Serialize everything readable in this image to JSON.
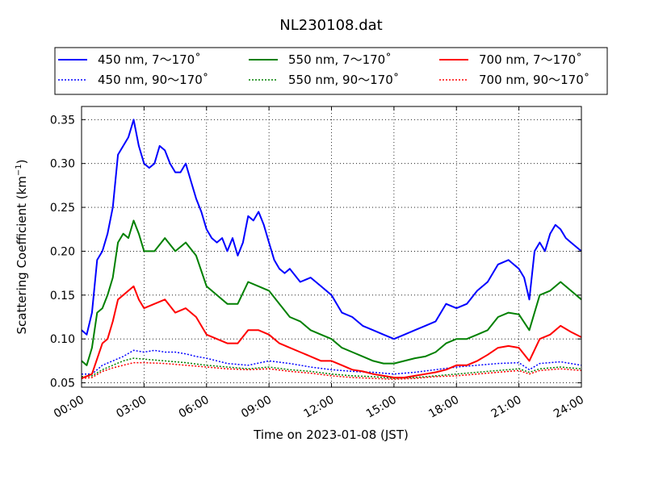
{
  "chart_data": {
    "type": "line",
    "title": "NL230108.dat",
    "xlabel": "Time on 2023-01-08 (JST)",
    "ylabel": "Scattering Coefficient (km",
    "ylabel_sup": "−1",
    "ylabel_end": ")",
    "xlim": [
      0,
      24
    ],
    "ylim": [
      0.045,
      0.365
    ],
    "xticks": [
      0,
      3,
      6,
      9,
      12,
      15,
      18,
      21,
      24
    ],
    "xtick_labels": [
      "00:00",
      "03:00",
      "06:00",
      "09:00",
      "12:00",
      "15:00",
      "18:00",
      "21:00",
      "24:00"
    ],
    "yticks": [
      0.05,
      0.1,
      0.15,
      0.2,
      0.25,
      0.3,
      0.35
    ],
    "ytick_labels": [
      "0.05",
      "0.10",
      "0.15",
      "0.20",
      "0.25",
      "0.30",
      "0.35"
    ],
    "grid": true,
    "legend_placement": "above-plot",
    "series": [
      {
        "name": "450 nm, 7～170˚",
        "color": "#0000ff",
        "style": "solid",
        "x": [
          0,
          0.25,
          0.5,
          0.75,
          1.0,
          1.25,
          1.5,
          1.75,
          2.0,
          2.25,
          2.5,
          2.75,
          3.0,
          3.25,
          3.5,
          3.75,
          4.0,
          4.25,
          4.5,
          4.75,
          5.0,
          5.25,
          5.5,
          5.75,
          6.0,
          6.25,
          6.5,
          6.75,
          7.0,
          7.25,
          7.5,
          7.75,
          8.0,
          8.25,
          8.5,
          8.75,
          9.0,
          9.25,
          9.5,
          9.75,
          10.0,
          10.5,
          11.0,
          11.5,
          12.0,
          12.5,
          13.0,
          13.5,
          14.0,
          14.5,
          15.0,
          15.5,
          16.0,
          16.5,
          17.0,
          17.5,
          18.0,
          18.5,
          19.0,
          19.5,
          20.0,
          20.5,
          21.0,
          21.25,
          21.5,
          21.75,
          22.0,
          22.25,
          22.5,
          22.75,
          23.0,
          23.25,
          23.5,
          24.0
        ],
        "y": [
          0.11,
          0.105,
          0.13,
          0.19,
          0.2,
          0.22,
          0.25,
          0.31,
          0.32,
          0.33,
          0.35,
          0.32,
          0.3,
          0.295,
          0.3,
          0.32,
          0.315,
          0.3,
          0.29,
          0.29,
          0.3,
          0.28,
          0.26,
          0.245,
          0.225,
          0.215,
          0.21,
          0.215,
          0.2,
          0.215,
          0.195,
          0.21,
          0.24,
          0.235,
          0.245,
          0.23,
          0.21,
          0.19,
          0.18,
          0.175,
          0.18,
          0.165,
          0.17,
          0.16,
          0.15,
          0.13,
          0.125,
          0.115,
          0.11,
          0.105,
          0.1,
          0.105,
          0.11,
          0.115,
          0.12,
          0.14,
          0.135,
          0.14,
          0.155,
          0.165,
          0.185,
          0.19,
          0.18,
          0.17,
          0.145,
          0.2,
          0.21,
          0.2,
          0.22,
          0.23,
          0.225,
          0.215,
          0.21,
          0.2
        ]
      },
      {
        "name": "450 nm, 90～170˚",
        "color": "#0000ff",
        "style": "dotted",
        "x": [
          0,
          0.5,
          1.0,
          1.5,
          2.0,
          2.5,
          3.0,
          3.5,
          4.0,
          4.5,
          5.0,
          5.5,
          6.0,
          7.0,
          8.0,
          9.0,
          10.0,
          11.0,
          12.0,
          13.0,
          14.0,
          15.0,
          16.0,
          17.0,
          18.0,
          19.0,
          20.0,
          21.0,
          21.5,
          22.0,
          23.0,
          24.0
        ],
        "y": [
          0.06,
          0.06,
          0.07,
          0.075,
          0.08,
          0.087,
          0.085,
          0.087,
          0.085,
          0.085,
          0.083,
          0.08,
          0.078,
          0.072,
          0.07,
          0.075,
          0.072,
          0.068,
          0.065,
          0.063,
          0.062,
          0.06,
          0.062,
          0.065,
          0.068,
          0.07,
          0.072,
          0.073,
          0.065,
          0.072,
          0.074,
          0.07
        ]
      },
      {
        "name": "550 nm, 7～170˚",
        "color": "#008000",
        "style": "solid",
        "x": [
          0,
          0.25,
          0.5,
          0.75,
          1.0,
          1.25,
          1.5,
          1.75,
          2.0,
          2.25,
          2.5,
          2.75,
          3.0,
          3.5,
          4.0,
          4.5,
          5.0,
          5.5,
          6.0,
          6.5,
          7.0,
          7.5,
          8.0,
          8.5,
          9.0,
          9.5,
          10.0,
          10.5,
          11.0,
          11.5,
          12.0,
          12.5,
          13.0,
          13.5,
          14.0,
          14.5,
          15.0,
          15.5,
          16.0,
          16.5,
          17.0,
          17.5,
          18.0,
          18.5,
          19.0,
          19.5,
          20.0,
          20.5,
          21.0,
          21.5,
          22.0,
          22.5,
          23.0,
          23.5,
          24.0
        ],
        "y": [
          0.075,
          0.07,
          0.09,
          0.13,
          0.135,
          0.15,
          0.17,
          0.21,
          0.22,
          0.215,
          0.235,
          0.22,
          0.2,
          0.2,
          0.215,
          0.2,
          0.21,
          0.195,
          0.16,
          0.15,
          0.14,
          0.14,
          0.165,
          0.16,
          0.155,
          0.14,
          0.125,
          0.12,
          0.11,
          0.105,
          0.1,
          0.09,
          0.085,
          0.08,
          0.075,
          0.072,
          0.072,
          0.075,
          0.078,
          0.08,
          0.085,
          0.095,
          0.1,
          0.1,
          0.105,
          0.11,
          0.125,
          0.13,
          0.128,
          0.11,
          0.15,
          0.155,
          0.165,
          0.155,
          0.145
        ]
      },
      {
        "name": "550 nm, 90～170˚",
        "color": "#008000",
        "style": "dotted",
        "x": [
          0,
          0.5,
          1.0,
          1.5,
          2.0,
          2.5,
          3.0,
          4.0,
          5.0,
          6.0,
          7.0,
          8.0,
          9.0,
          10.0,
          11.0,
          12.0,
          13.0,
          14.0,
          15.0,
          16.0,
          17.0,
          18.0,
          19.0,
          20.0,
          21.0,
          21.5,
          22.0,
          23.0,
          24.0
        ],
        "y": [
          0.057,
          0.058,
          0.065,
          0.07,
          0.075,
          0.078,
          0.077,
          0.075,
          0.073,
          0.07,
          0.068,
          0.066,
          0.068,
          0.065,
          0.063,
          0.06,
          0.058,
          0.057,
          0.055,
          0.056,
          0.058,
          0.06,
          0.062,
          0.064,
          0.066,
          0.062,
          0.066,
          0.068,
          0.066
        ]
      },
      {
        "name": "700 nm, 7～170˚",
        "color": "#ff0000",
        "style": "solid",
        "x": [
          0,
          0.5,
          1.0,
          1.25,
          1.5,
          1.75,
          2.0,
          2.5,
          2.75,
          3.0,
          3.5,
          4.0,
          4.5,
          5.0,
          5.5,
          6.0,
          6.5,
          7.0,
          7.5,
          8.0,
          8.5,
          9.0,
          9.5,
          10.0,
          10.5,
          11.0,
          11.5,
          12.0,
          12.5,
          13.0,
          13.5,
          14.0,
          14.5,
          15.0,
          15.5,
          16.0,
          16.5,
          17.0,
          17.5,
          18.0,
          18.5,
          19.0,
          19.5,
          20.0,
          20.5,
          21.0,
          21.5,
          22.0,
          22.5,
          23.0,
          23.5,
          24.0
        ],
        "y": [
          0.055,
          0.06,
          0.095,
          0.1,
          0.12,
          0.145,
          0.15,
          0.16,
          0.145,
          0.135,
          0.14,
          0.145,
          0.13,
          0.135,
          0.125,
          0.105,
          0.1,
          0.095,
          0.095,
          0.11,
          0.11,
          0.105,
          0.095,
          0.09,
          0.085,
          0.08,
          0.075,
          0.075,
          0.07,
          0.065,
          0.063,
          0.06,
          0.058,
          0.056,
          0.056,
          0.058,
          0.06,
          0.062,
          0.065,
          0.07,
          0.07,
          0.075,
          0.082,
          0.09,
          0.092,
          0.09,
          0.075,
          0.1,
          0.105,
          0.115,
          0.108,
          0.102
        ]
      },
      {
        "name": "700 nm, 90～170˚",
        "color": "#ff0000",
        "style": "dotted",
        "x": [
          0,
          0.5,
          1.0,
          1.5,
          2.0,
          2.5,
          3.0,
          4.0,
          5.0,
          6.0,
          7.0,
          8.0,
          9.0,
          10.0,
          11.0,
          12.0,
          13.0,
          14.0,
          15.0,
          16.0,
          17.0,
          18.0,
          19.0,
          20.0,
          21.0,
          21.5,
          22.0,
          23.0,
          24.0
        ],
        "y": [
          0.055,
          0.056,
          0.063,
          0.067,
          0.07,
          0.073,
          0.073,
          0.072,
          0.07,
          0.068,
          0.066,
          0.065,
          0.066,
          0.063,
          0.061,
          0.058,
          0.056,
          0.055,
          0.054,
          0.055,
          0.057,
          0.058,
          0.06,
          0.062,
          0.064,
          0.06,
          0.064,
          0.066,
          0.064
        ]
      }
    ]
  }
}
